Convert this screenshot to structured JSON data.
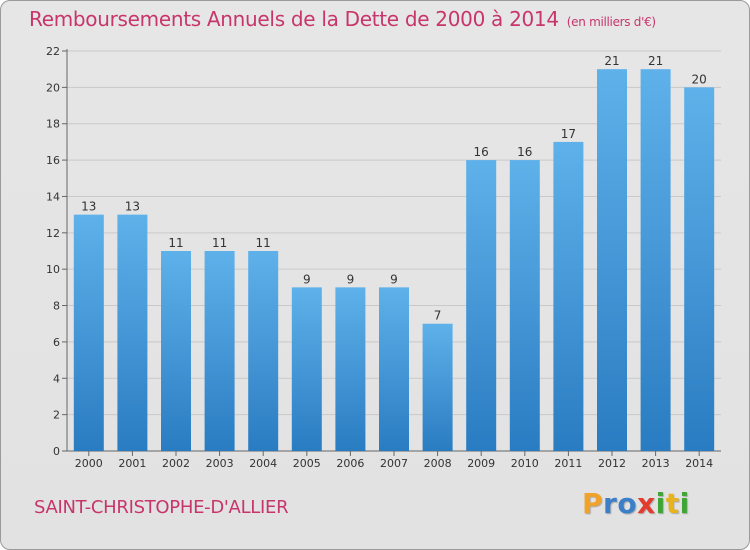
{
  "title": "Remboursements Annuels de la Dette de 2000 à 2014",
  "unit_note": "(en milliers d'€)",
  "commune": "SAINT-CHRISTOPHE-D'ALLIER",
  "logo": {
    "text": "Proxiti",
    "letters": [
      {
        "char": "P",
        "color": "#f0a22a"
      },
      {
        "char": "r",
        "color": "#3a7fc8"
      },
      {
        "char": "o",
        "color": "#3a7fc8"
      },
      {
        "char": "x",
        "color": "#e33b2e"
      },
      {
        "char": "i",
        "color": "#3fa535"
      },
      {
        "char": "t",
        "color": "#e8b31c"
      },
      {
        "char": "i",
        "color": "#3fa535"
      }
    ]
  },
  "colors": {
    "title": "#c8356b",
    "bar_top": "#5fb1ea",
    "bar_bottom": "#2a7cc2",
    "background": "#e4e4e4",
    "gridline": "#c9c9c9"
  },
  "chart_data": {
    "type": "bar",
    "categories": [
      "2000",
      "2001",
      "2002",
      "2003",
      "2004",
      "2005",
      "2006",
      "2007",
      "2008",
      "2009",
      "2010",
      "2011",
      "2012",
      "2013",
      "2014"
    ],
    "values": [
      13,
      13,
      11,
      11,
      11,
      9,
      9,
      9,
      7,
      16,
      16,
      17,
      21,
      21,
      20
    ],
    "value_labels": [
      "13",
      "13",
      "11",
      "11",
      "11",
      "9",
      "9",
      "9",
      "7",
      "16",
      "16",
      "17",
      "21",
      "21",
      "20"
    ],
    "ylim": [
      0,
      22
    ],
    "yticks": [
      0,
      2,
      4,
      6,
      8,
      10,
      12,
      14,
      16,
      18,
      20,
      22
    ],
    "grid": true,
    "xlabel": "",
    "ylabel": ""
  }
}
